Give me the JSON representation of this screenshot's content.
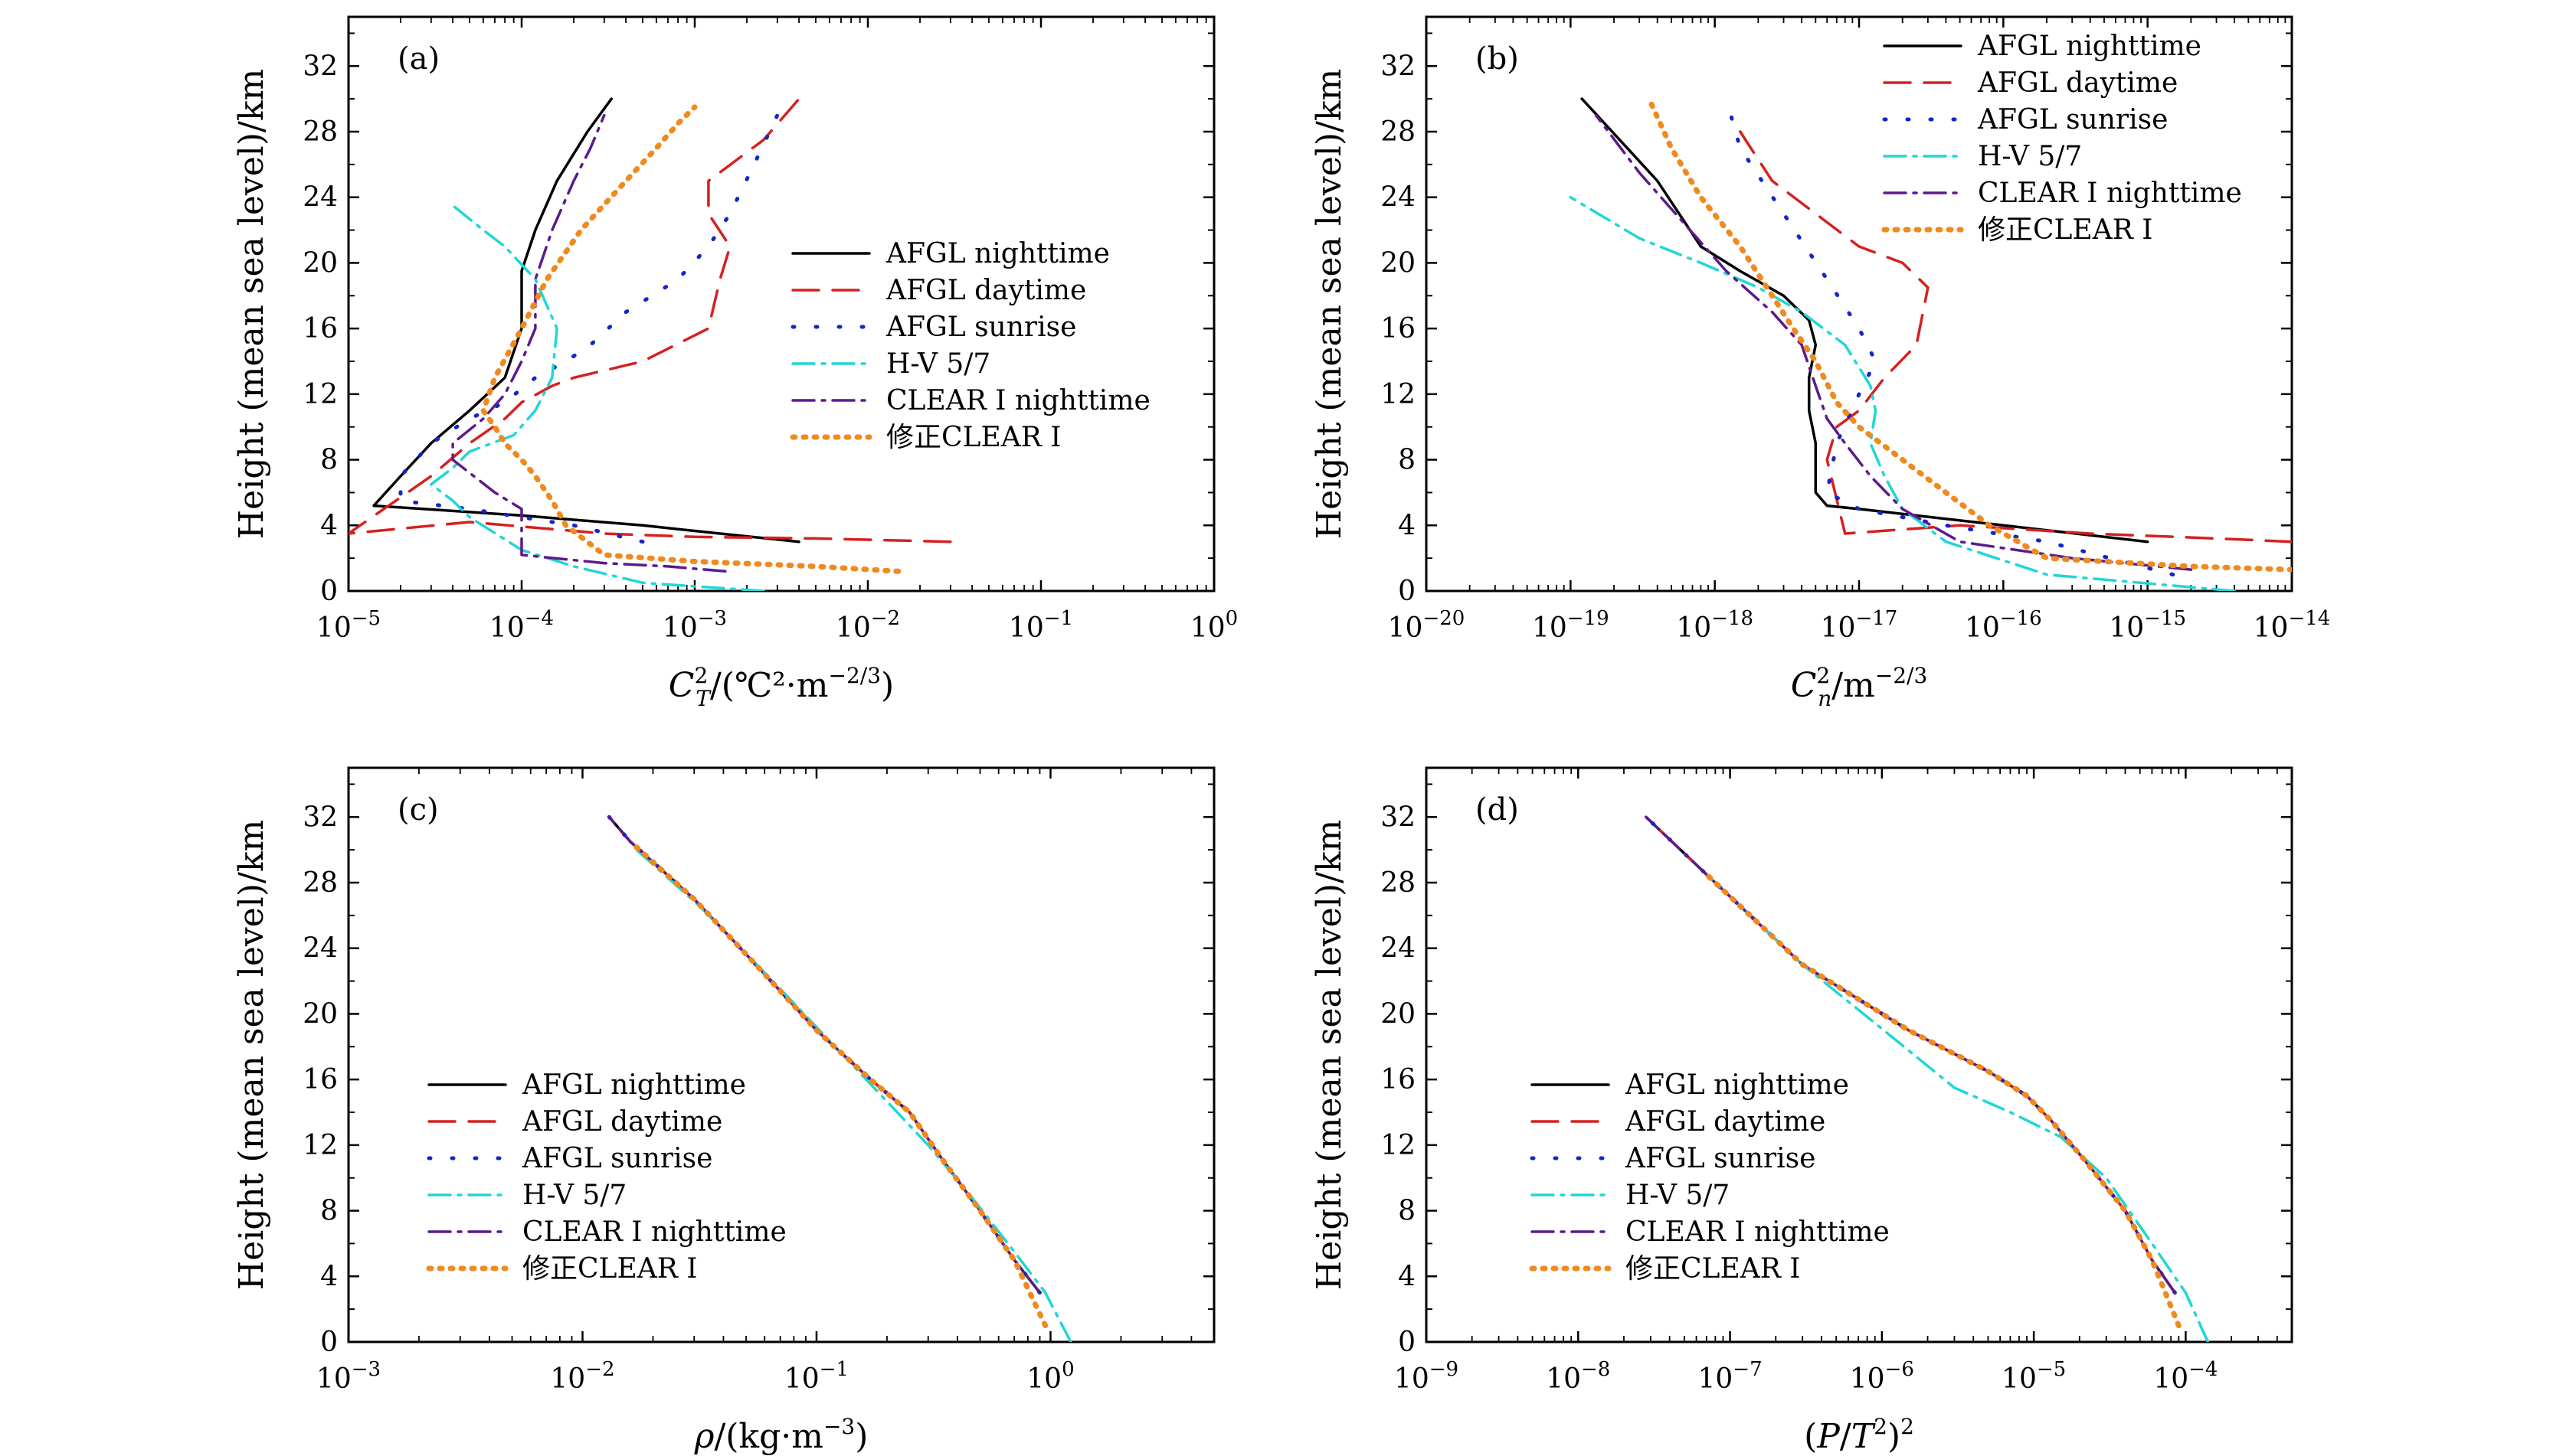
{
  "figure": {
    "styles": {
      "AFGL nighttime": {
        "color": "#000000",
        "dash": "none"
      },
      "AFGL daytime": {
        "color": "#d62020",
        "dash": "34 18"
      },
      "AFGL sunrise": {
        "color": "#1525c8",
        "dash": "2 28"
      },
      "H-V 5/7": {
        "color": "#20d6d6",
        "dash": "28 10 4 10"
      },
      "CLEAR I nighttime": {
        "color": "#5c1a8c",
        "dash": "28 10 4 10"
      },
      "修正CLEAR I": {
        "color": "#f08a1e",
        "dash": "3 11"
      }
    }
  },
  "panels": [
    {
      "label": "(a)",
      "xlabel": "C_T^2/(℃²·m^−2/3)"
    },
    {
      "label": "(b)",
      "xlabel": "C_n^2/m^−2/3"
    },
    {
      "label": "(c)",
      "xlabel": "ρ/(kg·m^−3)"
    },
    {
      "label": "(d)",
      "xlabel": "(P/T²)²"
    }
  ],
  "chart_data": [
    {
      "type": "line",
      "label": "(a)",
      "title": "",
      "xlabel": "C_T^2/(℃²·m^−2/3)",
      "ylabel": "Height (mean sea level)/km",
      "xscale": "log",
      "xlim": [
        1e-05,
        1
      ],
      "xticks": [
        -5,
        -4,
        -3,
        -2,
        -1,
        0
      ],
      "ylim": [
        0,
        35
      ],
      "yticks": [
        0,
        4,
        8,
        12,
        16,
        20,
        24,
        28,
        32
      ],
      "legend_position": "center-right",
      "series": [
        {
          "name": "AFGL nighttime",
          "x": [
            0.004,
            0.0014,
            0.0005,
            0.0001,
            1.4e-05,
            2e-05,
            3e-05,
            5e-05,
            8e-05,
            0.0001,
            0.0001,
            0.00012,
            0.00016,
            0.00024,
            0.00033
          ],
          "y": [
            3,
            3.5,
            4,
            4.6,
            5.2,
            7,
            9,
            11,
            13,
            16,
            19.5,
            22,
            25,
            28,
            30
          ]
        },
        {
          "name": "AFGL daytime",
          "x": [
            0.03,
            0.005,
            0.001,
            0.0003,
            5e-05,
            1e-05,
            3e-05,
            5e-05,
            8e-05,
            0.0001,
            0.00015,
            0.0002,
            0.0005,
            0.0012,
            0.0014,
            0.0016,
            0.0012,
            0.0012,
            0.0025,
            0.004
          ],
          "y": [
            3,
            3.2,
            3.3,
            3.5,
            4.2,
            3.5,
            7,
            9,
            10.5,
            11.5,
            12.5,
            13,
            14,
            16,
            19,
            21,
            23,
            25,
            27.5,
            30
          ]
        },
        {
          "name": "AFGL sunrise",
          "x": [
            0.0005,
            0.0002,
            5e-05,
            2e-05,
            2e-05,
            3e-05,
            5e-05,
            8e-05,
            0.00012,
            0.00018,
            0.00025,
            0.0004,
            0.0008,
            0.0012,
            0.0016,
            0.0022,
            0.003
          ],
          "y": [
            3,
            4,
            5,
            5.5,
            7,
            9,
            10.5,
            11.5,
            13,
            14,
            15,
            17,
            19,
            21,
            23,
            26,
            29
          ]
        },
        {
          "name": "H-V 5/7",
          "x": [
            0.0025,
            0.0005,
            0.0002,
            0.0001,
            5e-05,
            4e-05,
            3e-05,
            4e-05,
            5e-05,
            9e-05,
            0.00012,
            0.00015,
            0.00016,
            0.00012,
            8e-05,
            6e-05,
            4e-05
          ],
          "y": [
            0,
            0.5,
            1.5,
            2.5,
            4.5,
            5.5,
            6.5,
            7.5,
            8.5,
            9.5,
            11,
            13,
            16,
            19,
            21,
            22,
            23.5
          ]
        },
        {
          "name": "CLEAR I nighttime",
          "x": [
            0.0015,
            0.0007,
            0.0003,
            0.0001,
            0.0001,
            0.0001,
            7e-05,
            4e-05,
            4e-05,
            6e-05,
            8e-05,
            0.0001,
            0.00012,
            0.00012,
            0.00015,
            0.0002,
            0.00025,
            0.0003
          ],
          "y": [
            1.2,
            1.5,
            1.7,
            2.2,
            3,
            5,
            6,
            8,
            9,
            10.5,
            12,
            14,
            16,
            19,
            22,
            25,
            27,
            29
          ]
        },
        {
          "name": "修正CLEAR I",
          "x": [
            0.015,
            0.005,
            0.001,
            0.0003,
            0.00018,
            0.00015,
            0.00012,
            0.0001,
            8e-05,
            7e-05,
            6e-05,
            7e-05,
            0.0001,
            0.00014,
            0.00022,
            0.0004,
            0.0006,
            0.0008,
            0.001
          ],
          "y": [
            1.2,
            1.5,
            1.8,
            2.2,
            4,
            5.5,
            7,
            8,
            9,
            10,
            11,
            13,
            16,
            19,
            22,
            25,
            27,
            28.5,
            29.5
          ]
        }
      ]
    },
    {
      "type": "line",
      "label": "(b)",
      "title": "",
      "xlabel": "C_n^2/m^−2/3",
      "ylabel": "Height (mean sea level)/km",
      "xscale": "log",
      "xlim": [
        1e-20,
        1e-14
      ],
      "xticks": [
        -20,
        -19,
        -18,
        -17,
        -16,
        -15,
        -14
      ],
      "ylim": [
        0,
        35
      ],
      "yticks": [
        0,
        4,
        8,
        12,
        16,
        20,
        24,
        28,
        32
      ],
      "legend_position": "top-right",
      "series": [
        {
          "name": "AFGL nighttime",
          "x": [
            1e-15,
            1e-16,
            1e-17,
            6e-18,
            5e-18,
            5e-18,
            4.5e-18,
            4.5e-18,
            5e-18,
            4.5e-18,
            3e-18,
            1.5e-18,
            8e-19,
            4e-19,
            1.2e-19
          ],
          "y": [
            3,
            4,
            5,
            5.2,
            6,
            9,
            11,
            13,
            15,
            16.5,
            18,
            19.5,
            21,
            25,
            30
          ]
        },
        {
          "name": "AFGL daytime",
          "x": [
            1e-14,
            3e-15,
            4e-16,
            5e-17,
            8e-18,
            6e-18,
            7e-18,
            1e-17,
            1.5e-17,
            2.5e-17,
            3e-17,
            2e-17,
            1e-17,
            5e-18,
            2.5e-18,
            1.5e-18
          ],
          "y": [
            3,
            3.2,
            3.5,
            4,
            3.5,
            8,
            10,
            11,
            13,
            15,
            18.5,
            20,
            21,
            23,
            25,
            28
          ]
        },
        {
          "name": "AFGL sunrise",
          "x": [
            1.5e-15,
            2e-16,
            4e-17,
            1e-17,
            6e-18,
            7e-18,
            1e-17,
            1.3e-17,
            1e-17,
            6e-18,
            3e-18,
            1.5e-18,
            1.2e-18
          ],
          "y": [
            1,
            3,
            4,
            5,
            6,
            9,
            12,
            14,
            16,
            19,
            23,
            27,
            30
          ]
        },
        {
          "name": "H-V 5/7",
          "x": [
            4e-15,
            2e-16,
            4e-17,
            2e-17,
            1.5e-17,
            1.2e-17,
            1.3e-17,
            1.2e-17,
            8e-18,
            4e-18,
            2e-18,
            8e-19,
            3e-19,
            1e-19
          ],
          "y": [
            0,
            1,
            3,
            5,
            7,
            9,
            11,
            12.5,
            15,
            17,
            18.5,
            20,
            21.5,
            24
          ]
        },
        {
          "name": "CLEAR I nighttime",
          "x": [
            2e-15,
            3e-16,
            5e-17,
            2e-17,
            1.2e-17,
            8e-18,
            6e-18,
            5e-18,
            4e-18,
            2.5e-18,
            1.2e-18,
            6e-19,
            3e-19,
            1.5e-19
          ],
          "y": [
            1.3,
            2,
            3,
            5,
            7,
            9,
            10.5,
            12.5,
            15,
            17,
            19.5,
            22.5,
            25.5,
            29
          ]
        },
        {
          "name": "修正CLEAR I",
          "x": [
            1e-14,
            2e-15,
            2e-16,
            8e-17,
            4e-17,
            2e-17,
            1e-17,
            7e-18,
            5e-18,
            3.5e-18,
            2.5e-18,
            1.5e-18,
            8e-19,
            5e-19,
            3.5e-19
          ],
          "y": [
            1.3,
            1.5,
            2,
            4,
            6,
            8,
            10,
            11.5,
            14,
            16,
            18,
            21,
            24,
            27,
            30
          ]
        }
      ]
    },
    {
      "type": "line",
      "label": "(c)",
      "title": "",
      "xlabel": "ρ/(kg·m^−3)",
      "ylabel": "Height (mean sea level)/km",
      "xscale": "log",
      "xlim": [
        0.001,
        5
      ],
      "xticks": [
        -3,
        -2,
        -1,
        0
      ],
      "ylim": [
        0,
        35
      ],
      "yticks": [
        0,
        4,
        8,
        12,
        16,
        20,
        24,
        28,
        32
      ],
      "legend_position": "center-left",
      "series": [
        {
          "name": "AFGL nighttime",
          "x": [
            0.9,
            0.7,
            0.5,
            0.35,
            0.25,
            0.17,
            0.1,
            0.055,
            0.03,
            0.016,
            0.013
          ],
          "y": [
            3,
            5,
            8,
            11,
            14,
            16,
            19,
            23,
            27,
            30.5,
            32
          ]
        },
        {
          "name": "AFGL daytime",
          "x": [
            0.9,
            0.7,
            0.5,
            0.35,
            0.25,
            0.17,
            0.1,
            0.055,
            0.03,
            0.016,
            0.013
          ],
          "y": [
            3,
            5,
            8,
            11,
            14,
            16,
            19,
            23,
            27,
            30.5,
            32
          ]
        },
        {
          "name": "AFGL sunrise",
          "x": [
            0.9,
            0.7,
            0.5,
            0.35,
            0.25,
            0.17,
            0.1,
            0.055,
            0.03,
            0.016,
            0.013
          ],
          "y": [
            3,
            5,
            8,
            11,
            14,
            16,
            19,
            23,
            27,
            30.5,
            32
          ]
        },
        {
          "name": "H-V 5/7",
          "x": [
            1.22,
            0.95,
            0.7,
            0.45,
            0.3,
            0.19,
            0.12,
            0.065,
            0.032,
            0.017
          ],
          "y": [
            0,
            3,
            5.5,
            9,
            12,
            15,
            18,
            22,
            26.5,
            30
          ]
        },
        {
          "name": "CLEAR I nighttime",
          "x": [
            0.9,
            0.7,
            0.5,
            0.35,
            0.25,
            0.17,
            0.1,
            0.055,
            0.03,
            0.016,
            0.013
          ],
          "y": [
            3,
            5,
            8,
            11,
            14,
            16,
            19,
            23,
            27,
            30.5,
            32
          ]
        },
        {
          "name": "修正CLEAR I",
          "x": [
            0.95,
            0.7,
            0.5,
            0.35,
            0.25,
            0.17,
            0.1,
            0.055,
            0.03,
            0.016
          ],
          "y": [
            1,
            5,
            8,
            11,
            14,
            16,
            19,
            23,
            27,
            30.5
          ]
        }
      ]
    },
    {
      "type": "line",
      "label": "(d)",
      "title": "",
      "xlabel": "(P/T²)²",
      "ylabel": "Height (mean sea level)/km",
      "xscale": "log",
      "xlim": [
        1e-09,
        0.0005
      ],
      "xticks": [
        -9,
        -8,
        -7,
        -6,
        -5,
        -4
      ],
      "ylim": [
        0,
        35
      ],
      "yticks": [
        0,
        4,
        8,
        12,
        16,
        20,
        24,
        28,
        32
      ],
      "legend_position": "center-left",
      "series": [
        {
          "name": "AFGL nighttime",
          "x": [
            8.5e-05,
            6e-05,
            4e-05,
            2.2e-05,
            1.3e-05,
            9e-06,
            5e-06,
            1.5e-06,
            3e-07,
            7e-08,
            2.8e-08
          ],
          "y": [
            3,
            5,
            8,
            11,
            13.5,
            15,
            16.5,
            19,
            23,
            28.5,
            32
          ]
        },
        {
          "name": "AFGL daytime",
          "x": [
            8.5e-05,
            6e-05,
            4e-05,
            2.2e-05,
            1.3e-05,
            9e-06,
            5e-06,
            1.5e-06,
            3e-07,
            7e-08,
            2.8e-08
          ],
          "y": [
            3,
            5,
            8,
            11,
            13.5,
            15,
            16.5,
            19,
            23,
            28.5,
            32
          ]
        },
        {
          "name": "AFGL sunrise",
          "x": [
            8.5e-05,
            6e-05,
            4e-05,
            2.2e-05,
            1.3e-05,
            9e-06,
            5e-06,
            1.5e-06,
            3e-07,
            7e-08,
            2.8e-08
          ],
          "y": [
            3,
            5,
            8,
            11,
            13.5,
            15,
            16.5,
            19,
            23,
            28.5,
            32
          ]
        },
        {
          "name": "H-V 5/7",
          "x": [
            0.00014,
            0.0001,
            6e-05,
            3e-05,
            1.5e-05,
            7e-06,
            3e-06,
            1.2e-06,
            3e-07,
            7e-08
          ],
          "y": [
            0,
            3,
            6,
            10,
            12.5,
            14,
            15.5,
            18.5,
            23,
            28.5
          ]
        },
        {
          "name": "CLEAR I nighttime",
          "x": [
            8.5e-05,
            6e-05,
            4e-05,
            2.2e-05,
            1.3e-05,
            9e-06,
            5e-06,
            1.5e-06,
            3e-07,
            7e-08,
            2.8e-08
          ],
          "y": [
            3,
            5,
            8,
            11,
            13.5,
            15,
            16.5,
            19,
            23,
            28.5,
            32
          ]
        },
        {
          "name": "修正CLEAR I",
          "x": [
            9e-05,
            6e-05,
            4e-05,
            2.2e-05,
            1.3e-05,
            9e-06,
            5e-06,
            1.5e-06,
            3e-07,
            7e-08
          ],
          "y": [
            1,
            5,
            8,
            11,
            13.5,
            15,
            16.5,
            19,
            23,
            28.5
          ]
        }
      ]
    }
  ]
}
